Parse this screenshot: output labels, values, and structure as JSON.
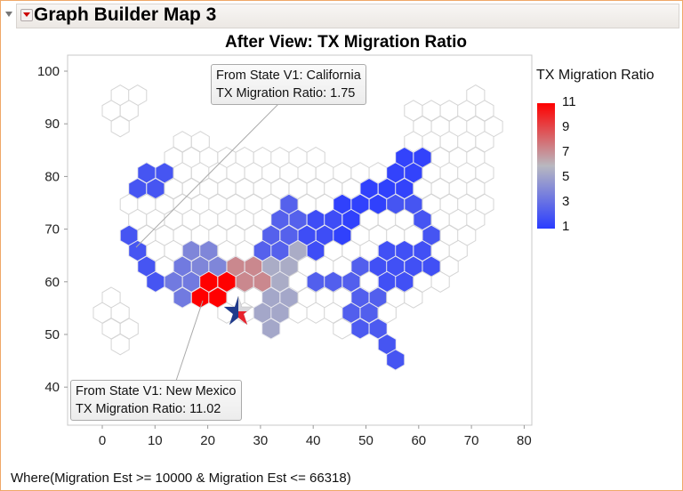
{
  "header": {
    "title": "Graph Builder Map 3"
  },
  "chart_data": {
    "type": "heatmap",
    "title": "After View: TX Migration Ratio",
    "xlabel": "",
    "ylabel": "",
    "xlim": [
      -6,
      82
    ],
    "ylim": [
      35,
      102
    ],
    "xticks": [
      "0",
      "10",
      "20",
      "30",
      "40",
      "50",
      "60",
      "70",
      "80"
    ],
    "yticks": [
      "100",
      "90",
      "80",
      "70",
      "60",
      "50",
      "40"
    ],
    "color_scale": {
      "title": "TX Migration Ratio",
      "min": 1,
      "max": 11,
      "labels": [
        "11",
        "9",
        "7",
        "5",
        "3",
        "1"
      ],
      "low": "#2a3cff",
      "mid": "#b8b8c0",
      "high": "#ff0000"
    },
    "rows": [
      {
        "y": 95.4,
        "cells": [
          [
            3.4,
            null
          ],
          [
            6.7,
            null
          ],
          [
            70.8,
            null
          ]
        ]
      },
      {
        "y": 92.5,
        "cells": [
          [
            1.7,
            null
          ],
          [
            5.1,
            null
          ],
          [
            59.0,
            null
          ],
          [
            62.4,
            null
          ],
          [
            65.8,
            null
          ],
          [
            69.1,
            null
          ],
          [
            72.5,
            null
          ]
        ]
      },
      {
        "y": 89.5,
        "cells": [
          [
            3.4,
            null
          ],
          [
            60.7,
            null
          ],
          [
            64.1,
            null
          ],
          [
            67.5,
            null
          ],
          [
            70.8,
            null
          ],
          [
            74.2,
            null
          ]
        ]
      },
      {
        "y": 86.6,
        "cells": [
          [
            15.2,
            null
          ],
          [
            18.6,
            null
          ],
          [
            59.0,
            null
          ],
          [
            62.4,
            null
          ],
          [
            65.8,
            null
          ],
          [
            69.1,
            null
          ],
          [
            72.5,
            null
          ]
        ]
      },
      {
        "y": 83.6,
        "cells": [
          [
            13.5,
            null
          ],
          [
            16.9,
            null
          ],
          [
            20.2,
            null
          ],
          [
            23.6,
            null
          ],
          [
            27.0,
            null
          ],
          [
            30.4,
            null
          ],
          [
            33.7,
            null
          ],
          [
            37.1,
            null
          ],
          [
            40.5,
            null
          ],
          [
            57.3,
            1.3
          ],
          [
            60.7,
            1.3
          ],
          [
            64.1,
            null
          ],
          [
            67.5,
            null
          ],
          [
            70.8,
            null
          ]
        ]
      },
      {
        "y": 80.7,
        "cells": [
          [
            8.4,
            2
          ],
          [
            11.8,
            2
          ],
          [
            15.2,
            null
          ],
          [
            18.6,
            null
          ],
          [
            21.9,
            null
          ],
          [
            25.3,
            null
          ],
          [
            28.7,
            null
          ],
          [
            32.0,
            null
          ],
          [
            35.4,
            null
          ],
          [
            38.8,
            null
          ],
          [
            42.2,
            null
          ],
          [
            45.5,
            null
          ],
          [
            48.9,
            null
          ],
          [
            52.3,
            null
          ],
          [
            55.6,
            1.3
          ],
          [
            59.0,
            1.3
          ],
          [
            62.4,
            null
          ],
          [
            65.8,
            null
          ],
          [
            69.1,
            null
          ],
          [
            72.5,
            null
          ]
        ]
      },
      {
        "y": 77.7,
        "cells": [
          [
            6.7,
            2
          ],
          [
            10.1,
            2
          ],
          [
            13.5,
            null
          ],
          [
            16.9,
            null
          ],
          [
            20.2,
            null
          ],
          [
            23.6,
            null
          ],
          [
            27.0,
            null
          ],
          [
            30.4,
            null
          ],
          [
            33.7,
            null
          ],
          [
            37.1,
            null
          ],
          [
            40.5,
            null
          ],
          [
            43.8,
            null
          ],
          [
            47.2,
            null
          ],
          [
            50.6,
            1.2
          ],
          [
            54.0,
            1.2
          ],
          [
            57.3,
            1.3
          ],
          [
            60.7,
            null
          ],
          [
            64.1,
            null
          ],
          [
            67.5,
            null
          ],
          [
            70.8,
            null
          ]
        ]
      },
      {
        "y": 74.7,
        "cells": [
          [
            5.1,
            null
          ],
          [
            8.4,
            null
          ],
          [
            11.8,
            null
          ],
          [
            15.2,
            null
          ],
          [
            18.6,
            null
          ],
          [
            21.9,
            null
          ],
          [
            25.3,
            null
          ],
          [
            28.7,
            null
          ],
          [
            32.0,
            null
          ],
          [
            35.4,
            2.5
          ],
          [
            38.8,
            null
          ],
          [
            42.2,
            null
          ],
          [
            45.5,
            1.2
          ],
          [
            48.9,
            1.2
          ],
          [
            52.3,
            1.2
          ],
          [
            55.6,
            2
          ],
          [
            59.0,
            2
          ],
          [
            62.4,
            null
          ],
          [
            65.8,
            null
          ],
          [
            69.1,
            null
          ],
          [
            72.5,
            null
          ]
        ]
      },
      {
        "y": 71.8,
        "cells": [
          [
            6.7,
            null
          ],
          [
            10.1,
            null
          ],
          [
            13.5,
            null
          ],
          [
            16.9,
            null
          ],
          [
            20.2,
            null
          ],
          [
            23.6,
            null
          ],
          [
            27.0,
            null
          ],
          [
            30.4,
            null
          ],
          [
            33.7,
            2.5
          ],
          [
            37.1,
            2.5
          ],
          [
            40.5,
            1.7
          ],
          [
            43.8,
            1.7
          ],
          [
            47.2,
            1.2
          ],
          [
            50.6,
            null
          ],
          [
            54.0,
            null
          ],
          [
            57.3,
            null
          ],
          [
            60.7,
            2
          ],
          [
            64.1,
            null
          ],
          [
            67.5,
            null
          ],
          [
            70.8,
            null
          ]
        ]
      },
      {
        "y": 68.8,
        "cells": [
          [
            5.1,
            2
          ],
          [
            8.4,
            null
          ],
          [
            11.8,
            null
          ],
          [
            15.2,
            null
          ],
          [
            18.6,
            null
          ],
          [
            21.9,
            null
          ],
          [
            25.3,
            null
          ],
          [
            28.7,
            null
          ],
          [
            32.0,
            2.5
          ],
          [
            35.4,
            2.5
          ],
          [
            38.8,
            1.7
          ],
          [
            42.2,
            1.7
          ],
          [
            45.5,
            1.2
          ],
          [
            48.9,
            null
          ],
          [
            52.3,
            null
          ],
          [
            55.6,
            null
          ],
          [
            59.0,
            null
          ],
          [
            62.4,
            2
          ],
          [
            65.8,
            null
          ],
          [
            69.1,
            null
          ]
        ]
      },
      {
        "y": 65.9,
        "cells": [
          [
            6.7,
            2
          ],
          [
            10.1,
            null
          ],
          [
            13.5,
            null
          ],
          [
            16.9,
            4
          ],
          [
            20.2,
            4
          ],
          [
            23.6,
            null
          ],
          [
            27.0,
            null
          ],
          [
            30.4,
            2.5
          ],
          [
            33.7,
            2.5
          ],
          [
            37.1,
            5.5
          ],
          [
            40.5,
            1.7
          ],
          [
            43.8,
            null
          ],
          [
            47.2,
            null
          ],
          [
            50.6,
            null
          ],
          [
            54.0,
            1.8
          ],
          [
            57.3,
            1.8
          ],
          [
            60.7,
            1.8
          ],
          [
            64.1,
            null
          ],
          [
            67.5,
            null
          ]
        ]
      },
      {
        "y": 62.9,
        "cells": [
          [
            8.4,
            2
          ],
          [
            11.8,
            null
          ],
          [
            15.2,
            3.5
          ],
          [
            18.6,
            4
          ],
          [
            21.9,
            4
          ],
          [
            25.3,
            7.3
          ],
          [
            28.7,
            7.3
          ],
          [
            32.0,
            5.5
          ],
          [
            35.4,
            5.5
          ],
          [
            38.8,
            null
          ],
          [
            42.2,
            null
          ],
          [
            45.5,
            null
          ],
          [
            48.9,
            2.4
          ],
          [
            52.3,
            1.8
          ],
          [
            55.6,
            1.8
          ],
          [
            59.0,
            1.8
          ],
          [
            62.4,
            1.8
          ],
          [
            65.8,
            null
          ]
        ]
      },
      {
        "y": 60.0,
        "cells": [
          [
            10.1,
            2
          ],
          [
            13.5,
            3.5
          ],
          [
            16.9,
            3.5
          ],
          [
            20.2,
            11
          ],
          [
            23.6,
            11
          ],
          [
            27.0,
            7.3
          ],
          [
            30.4,
            7.3
          ],
          [
            33.7,
            5.5
          ],
          [
            37.1,
            null
          ],
          [
            40.5,
            2.4
          ],
          [
            43.8,
            2.4
          ],
          [
            47.2,
            2.4
          ],
          [
            50.6,
            null
          ],
          [
            54.0,
            1.8
          ],
          [
            57.3,
            1.8
          ],
          [
            60.7,
            null
          ],
          [
            64.1,
            null
          ]
        ]
      },
      {
        "y": 57.0,
        "cells": [
          [
            1.7,
            null
          ],
          [
            15.2,
            3.5
          ],
          [
            18.6,
            11
          ],
          [
            21.9,
            11
          ],
          [
            25.3,
            null
          ],
          [
            28.7,
            null
          ],
          [
            32.0,
            5.3
          ],
          [
            35.4,
            5.3
          ],
          [
            38.8,
            null
          ],
          [
            42.2,
            null
          ],
          [
            45.5,
            null
          ],
          [
            48.9,
            2.4
          ],
          [
            52.3,
            2.4
          ],
          [
            55.6,
            null
          ],
          [
            59.0,
            null
          ]
        ]
      },
      {
        "y": 54.1,
        "cells": [
          [
            0,
            null
          ],
          [
            3.4,
            null
          ],
          [
            23.6,
            null
          ],
          [
            27.0,
            null
          ],
          [
            30.4,
            5.3
          ],
          [
            33.7,
            5.3
          ],
          [
            37.1,
            null
          ],
          [
            40.5,
            null
          ],
          [
            43.8,
            null
          ],
          [
            47.2,
            2.4
          ],
          [
            50.6,
            2.4
          ],
          [
            54.0,
            null
          ]
        ]
      },
      {
        "y": 51.1,
        "cells": [
          [
            1.7,
            null
          ],
          [
            5.1,
            null
          ],
          [
            32.0,
            5.3
          ],
          [
            45.5,
            null
          ],
          [
            48.9,
            2.2
          ],
          [
            52.3,
            2.2
          ]
        ]
      },
      {
        "y": 48.1,
        "cells": [
          [
            3.4,
            null
          ],
          [
            54.0,
            2
          ]
        ]
      },
      {
        "y": 45.2,
        "cells": [
          [
            55.6,
            2
          ]
        ]
      }
    ]
  },
  "tooltips": [
    {
      "line1": "From State V1: California",
      "line2": "TX Migration Ratio: 1.75"
    },
    {
      "line1": "From State V1: New Mexico",
      "line2": "TX Migration Ratio: 11.02"
    }
  ],
  "footer": "Where(Migration Est >= 10000 & Migration Est <= 66318)"
}
